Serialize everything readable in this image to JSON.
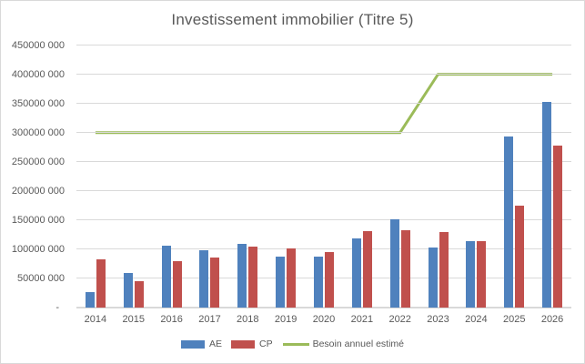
{
  "chart_data": {
    "type": "bar",
    "title": "Investissement immobilier (Titre 5)",
    "categories": [
      "2014",
      "2015",
      "2016",
      "2017",
      "2018",
      "2019",
      "2020",
      "2021",
      "2022",
      "2023",
      "2024",
      "2025",
      "2026"
    ],
    "series": [
      {
        "name": "AE",
        "type": "bar",
        "color": "#4F81BD",
        "values": [
          27000000,
          60000000,
          106000000,
          99000000,
          110000000,
          88000000,
          88000000,
          118000000,
          152000000,
          103000000,
          114000000,
          294000000,
          353000000
        ]
      },
      {
        "name": "CP",
        "type": "bar",
        "color": "#C0504D",
        "values": [
          83000000,
          45000000,
          80000000,
          86000000,
          104000000,
          101000000,
          95000000,
          131000000,
          133000000,
          130000000,
          114000000,
          175000000,
          278000000
        ]
      },
      {
        "name": "Besoin annuel estimé",
        "type": "line",
        "color": "#9BBB59",
        "values": [
          300000000,
          300000000,
          300000000,
          300000000,
          300000000,
          300000000,
          300000000,
          300000000,
          300000000,
          400000000,
          400000000,
          400000000,
          400000000
        ]
      }
    ],
    "y_axis": {
      "min": 0,
      "max": 450000000,
      "tick_interval": 50000000,
      "tick_labels": [
        "-",
        "50000 000",
        "100000 000",
        "150000 000",
        "200000 000",
        "250000 000",
        "300000 000",
        "350000 000",
        "400000 000",
        "450000 000"
      ]
    },
    "grid": true,
    "legend_position": "bottom"
  },
  "colors": {
    "background": "#FFFFFF",
    "border": "#D9D9D9",
    "gridline": "#D9D9D9",
    "axis_line": "#D9D9D9",
    "text": "#595959",
    "series_ae": "#4F81BD",
    "series_cp": "#C0504D",
    "series_line": "#9BBB59"
  }
}
